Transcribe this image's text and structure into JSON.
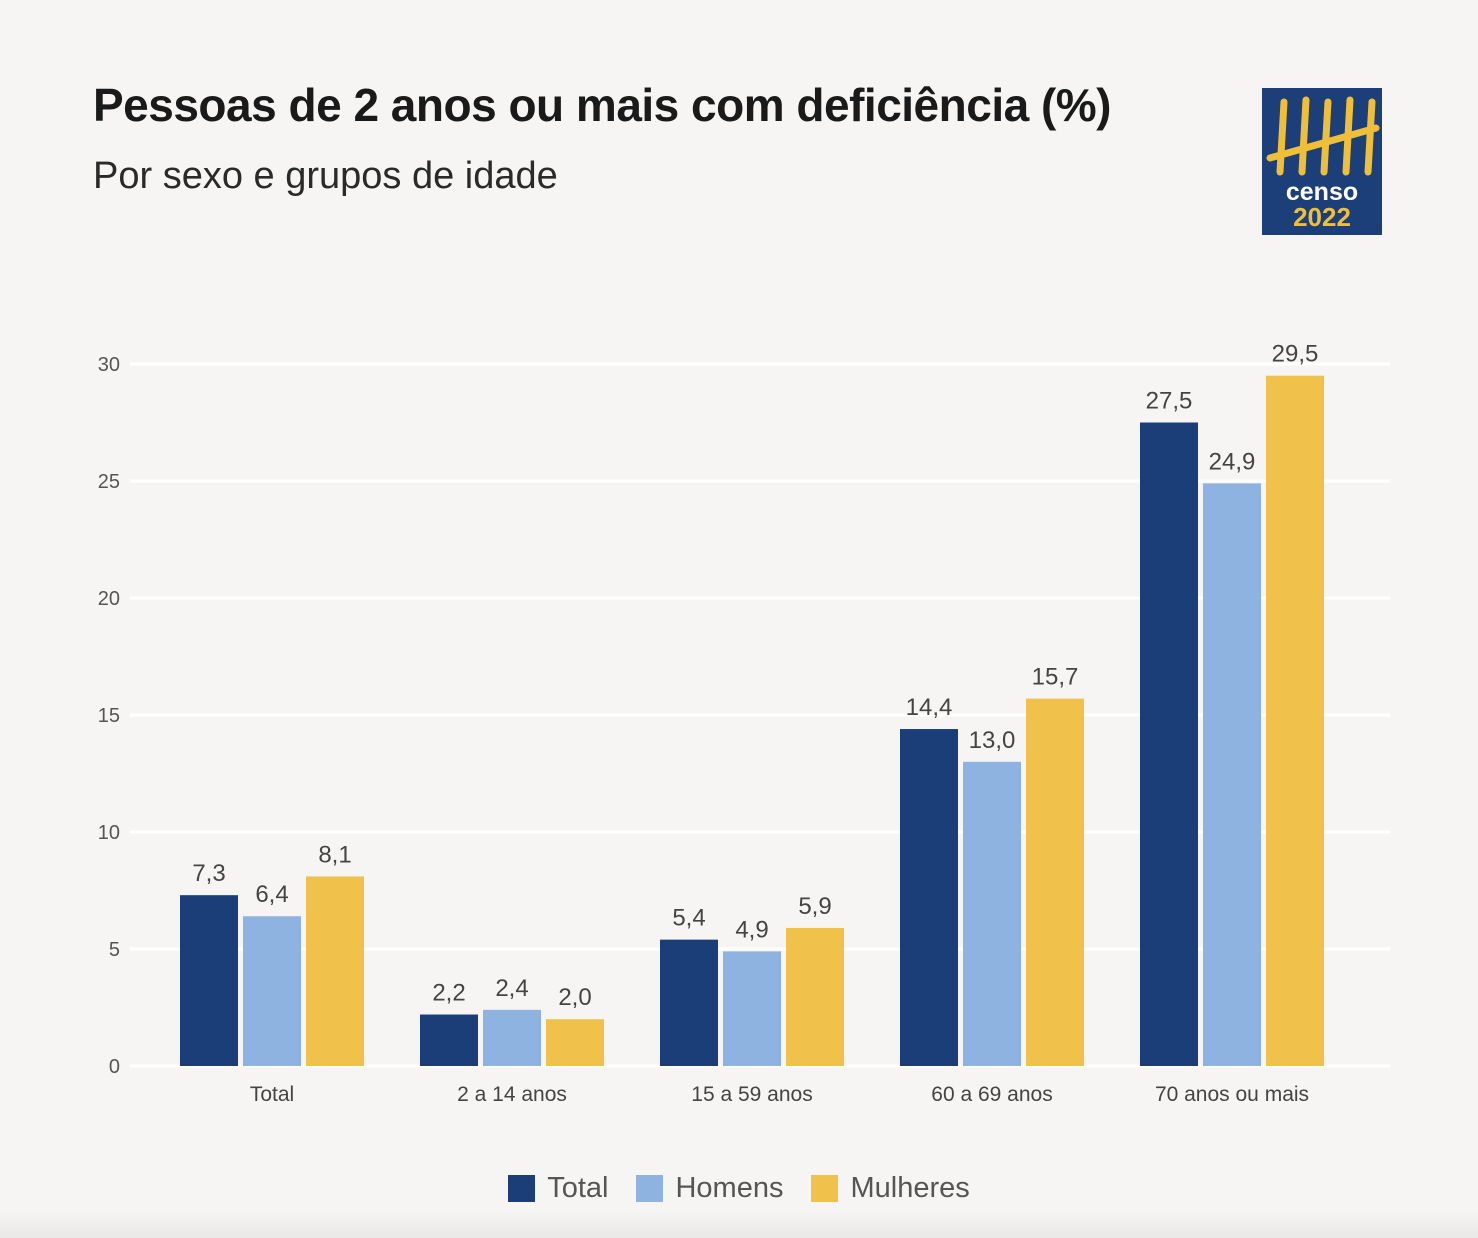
{
  "header": {
    "title": "Pessoas de 2 anos ou mais com deficiência (%)",
    "subtitle": "Por sexo e grupos de idade"
  },
  "logo": {
    "text_line1": "censo",
    "text_line2": "2022",
    "background": "#1c3f7a",
    "accent": "#f0bf3a"
  },
  "chart_data": {
    "type": "bar",
    "title": "Pessoas de 2 anos ou mais com deficiência (%)",
    "subtitle": "Por sexo e grupos de idade",
    "categories": [
      "Total",
      "2 a 14 anos",
      "15 a 59 anos",
      "60 a 69 anos",
      "70 anos ou mais"
    ],
    "series": [
      {
        "name": "Total",
        "color": "#1b3d78",
        "values": [
          7.3,
          2.2,
          5.4,
          14.4,
          27.5
        ],
        "labels": [
          "7,3",
          "2,2",
          "5,4",
          "14,4",
          "27,5"
        ]
      },
      {
        "name": "Homens",
        "color": "#8fb3e0",
        "values": [
          6.4,
          2.4,
          4.9,
          13.0,
          24.9
        ],
        "labels": [
          "6,4",
          "2,4",
          "4,9",
          "13,0",
          "24,9"
        ]
      },
      {
        "name": "Mulheres",
        "color": "#f0c14b",
        "values": [
          8.1,
          2.0,
          5.9,
          15.7,
          29.5
        ],
        "labels": [
          "8,1",
          "2,0",
          "5,9",
          "15,7",
          "29,5"
        ]
      }
    ],
    "ylim": [
      0,
      30
    ],
    "yticks": [
      "0",
      "5",
      "10",
      "15",
      "20",
      "25",
      "30"
    ],
    "grid": true,
    "legend_position": "bottom",
    "xlabel": "",
    "ylabel": ""
  }
}
